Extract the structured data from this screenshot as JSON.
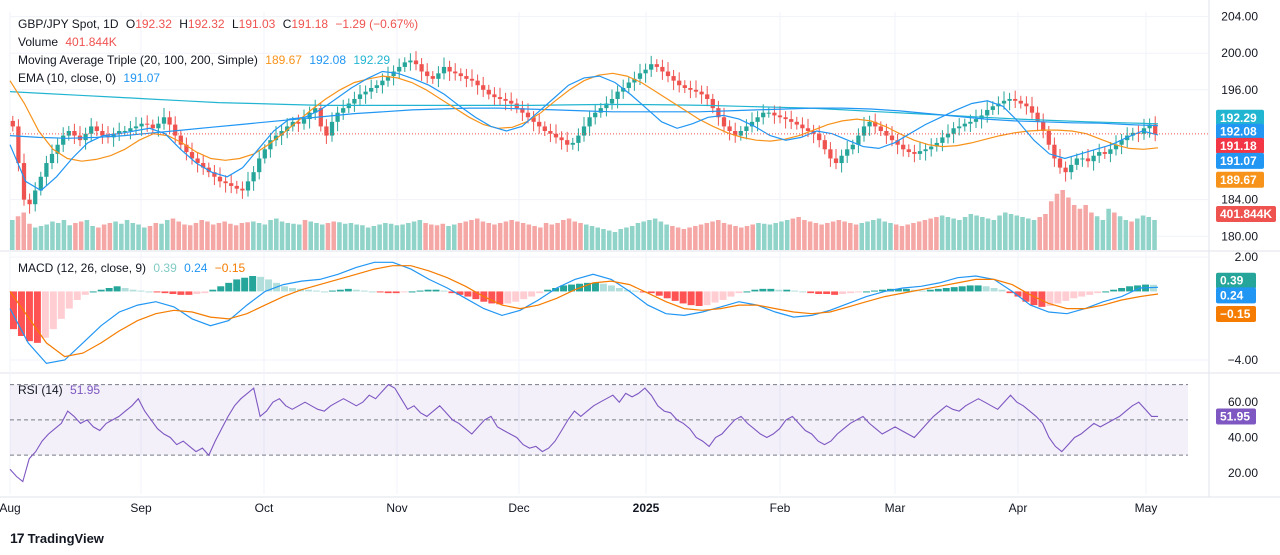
{
  "header": {
    "symbol": "GBP/JPY Spot, 1D",
    "o_label": "O",
    "open": "192.32",
    "h_label": "H",
    "high": "192.32",
    "l_label": "L",
    "low": "191.03",
    "c_label": "C",
    "close": "191.18",
    "change": "−1.29 (−0.67%)",
    "volume_label": "Volume",
    "volume": "401.844K",
    "ma_label": "Moving Average Triple (20, 100, 200, Simple)",
    "ma20": "189.67",
    "ma100": "192.08",
    "ma200": "192.29",
    "ema_label": "EMA (10, close, 0)",
    "ema": "191.07",
    "macd_label": "MACD (12, 26, close, 9)",
    "macd_hist": "0.39",
    "macd_line": "0.24",
    "macd_signal": "−0.15",
    "rsi_label": "RSI (14)",
    "rsi_value": "51.95"
  },
  "colors": {
    "up": "#26a69a",
    "down": "#ef5350",
    "ma20": "#f7931a",
    "ma100": "#2196f3",
    "ma200": "#22b5d1",
    "ema": "#2196f3",
    "macd_line": "#2196f3",
    "macd_signal": "#f57c00",
    "rsi": "#7e57c2",
    "vol_up": "#90d3c9",
    "vol_down": "#f5a7a6",
    "grid": "#f0f3fa",
    "text": "#131722"
  },
  "footer": {
    "brand": "TradingView",
    "logo_glyph": "17"
  },
  "chart_data": [
    {
      "type": "candlestick",
      "title": "GBP/JPY Spot, 1D",
      "x_ticks": [
        "Aug",
        "Sep",
        "Oct",
        "Nov",
        "Dec",
        "2025",
        "Feb",
        "Mar",
        "Apr",
        "May"
      ],
      "y_ticks": [
        204.0,
        200.0,
        196.0,
        184.0,
        180.0
      ],
      "ylim": [
        178.5,
        204.5
      ],
      "close_path": [
        192.0,
        188.0,
        184.0,
        183.5,
        185.0,
        186.5,
        188.0,
        189.0,
        190.0,
        191.0,
        191.5,
        191.0,
        190.5,
        191.2,
        192.0,
        191.5,
        191.0,
        190.8,
        191.2,
        191.5,
        191.5,
        191.8,
        192.0,
        192.3,
        192.2,
        191.8,
        192.3,
        193.0,
        192.2,
        191.0,
        190.0,
        189.2,
        188.5,
        188.0,
        187.5,
        187.0,
        186.5,
        186.0,
        185.8,
        185.5,
        185.2,
        185.0,
        186.0,
        187.0,
        188.5,
        189.5,
        190.5,
        191.0,
        191.5,
        192.0,
        192.5,
        192.3,
        192.8,
        193.5,
        194.0,
        192.0,
        191.0,
        192.5,
        193.5,
        194.0,
        194.5,
        195.0,
        195.5,
        195.8,
        196.2,
        196.5,
        197.0,
        197.5,
        198.0,
        198.5,
        199.0,
        199.2,
        198.8,
        198.0,
        197.5,
        197.2,
        197.8,
        198.5,
        198.0,
        197.8,
        197.5,
        197.2,
        197.0,
        196.5,
        196.0,
        195.5,
        195.2,
        195.0,
        194.8,
        194.5,
        194.0,
        193.5,
        193.0,
        192.5,
        192.0,
        191.5,
        191.2,
        190.8,
        190.5,
        190.0,
        190.2,
        191.0,
        192.0,
        193.0,
        193.5,
        194.0,
        194.5,
        195.0,
        195.8,
        196.2,
        196.8,
        197.2,
        197.8,
        198.2,
        198.8,
        198.5,
        198.0,
        197.5,
        197.0,
        196.5,
        196.2,
        196.0,
        195.8,
        195.5,
        195.0,
        194.0,
        193.0,
        192.0,
        191.5,
        191.0,
        191.5,
        192.0,
        192.5,
        193.0,
        193.5,
        193.5,
        193.2,
        193.0,
        192.8,
        192.5,
        192.2,
        191.8,
        191.5,
        191.2,
        190.5,
        189.5,
        188.5,
        188.0,
        188.8,
        189.5,
        190.0,
        191.0,
        192.0,
        192.5,
        192.0,
        191.5,
        191.0,
        190.5,
        190.0,
        189.5,
        189.2,
        189.0,
        189.3,
        189.5,
        189.8,
        190.2,
        190.8,
        191.2,
        191.8,
        192.0,
        192.3,
        192.5,
        192.8,
        193.2,
        193.8,
        194.2,
        194.5,
        194.8,
        195.0,
        194.8,
        194.5,
        194.2,
        193.5,
        192.5,
        191.5,
        190.0,
        188.5,
        187.5,
        187.0,
        187.8,
        188.5,
        188.5,
        188.2,
        188.8,
        189.2,
        189.0,
        189.5,
        190.0,
        190.5,
        191.0,
        191.3,
        191.2,
        191.8,
        192.2,
        191.18
      ],
      "ma20_path": [
        197.0,
        194.5,
        191.5,
        189.5,
        188.5,
        188.2,
        188.4,
        188.8,
        189.5,
        190.5,
        191.2,
        191.0,
        190.2,
        189.2,
        188.5,
        188.3,
        188.5,
        189.0,
        190.0,
        191.2,
        192.5,
        193.8,
        195.0,
        196.0,
        196.8,
        197.2,
        197.5,
        197.3,
        196.8,
        196.0,
        195.0,
        194.0,
        193.0,
        192.2,
        191.8,
        191.9,
        192.5,
        193.5,
        194.8,
        196.0,
        197.0,
        197.6,
        197.8,
        197.5,
        196.8,
        195.8,
        194.8,
        193.8,
        192.8,
        192.0,
        191.3,
        190.8,
        190.5,
        190.4,
        190.6,
        191.0,
        191.6,
        192.2,
        192.6,
        192.8,
        192.6,
        192.0,
        191.2,
        190.5,
        190.0,
        189.8,
        189.9,
        190.2,
        190.6,
        191.0,
        191.3,
        191.5,
        191.6,
        191.6,
        191.5,
        191.2,
        190.6,
        190.0,
        189.6,
        189.5,
        189.67
      ],
      "ma100_path": [
        191.0,
        190.8,
        190.7,
        190.8,
        191.0,
        191.3,
        191.6,
        191.9,
        192.2,
        192.5,
        192.8,
        193.1,
        193.4,
        193.6,
        193.8,
        193.9,
        194.0,
        194.0,
        193.9,
        193.8,
        193.7,
        193.6,
        193.6,
        193.6,
        193.6,
        193.7,
        193.8,
        193.9,
        194.0,
        194.0,
        193.9,
        193.7,
        193.4,
        193.1,
        192.8,
        192.6,
        192.5,
        192.4,
        192.35,
        192.2,
        192.08
      ],
      "ma200_path": [
        195.8,
        195.6,
        195.4,
        195.2,
        195.0,
        194.8,
        194.6,
        194.5,
        194.4,
        194.3,
        194.3,
        194.3,
        194.3,
        194.3,
        194.3,
        194.3,
        194.35,
        194.4,
        194.4,
        194.35,
        194.3,
        194.2,
        194.1,
        194.0,
        193.8,
        193.6,
        193.4,
        193.2,
        193.0,
        192.8,
        192.65,
        192.5,
        192.4,
        192.29
      ],
      "ema_path": [
        190.0,
        186.0,
        185.0,
        186.5,
        188.5,
        190.2,
        191.0,
        191.2,
        191.5,
        191.8,
        191.2,
        189.5,
        188.0,
        187.0,
        186.5,
        187.5,
        189.5,
        191.5,
        192.8,
        193.0,
        193.8,
        195.0,
        196.2,
        197.2,
        198.0,
        197.8,
        197.2,
        196.5,
        195.5,
        194.2,
        193.0,
        192.0,
        191.5,
        192.0,
        193.5,
        195.0,
        196.5,
        197.3,
        197.5,
        196.8,
        195.5,
        194.0,
        192.5,
        191.8,
        192.3,
        193.0,
        193.2,
        192.8,
        192.0,
        191.0,
        190.5,
        190.8,
        191.5,
        191.2,
        190.5,
        189.8,
        189.6,
        190.2,
        191.2,
        192.2,
        193.0,
        193.8,
        194.5,
        194.8,
        194.2,
        192.5,
        190.5,
        189.0,
        188.5,
        189.0,
        189.5,
        190.0,
        190.8,
        191.5,
        191.07
      ]
    },
    {
      "type": "bar",
      "title": "Volume",
      "values": [
        40,
        45,
        50,
        35,
        30,
        32,
        34,
        38,
        36,
        40,
        33,
        36,
        38,
        40,
        32,
        30,
        34,
        36,
        38,
        35,
        40,
        36,
        34,
        30,
        32,
        36,
        35,
        40,
        42,
        38,
        34,
        33,
        36,
        40,
        38,
        34,
        36,
        38,
        35,
        33,
        36,
        37,
        38,
        36,
        34,
        40,
        42,
        38,
        36,
        35,
        34,
        40,
        38,
        36,
        34,
        36,
        38,
        37,
        35,
        36,
        34,
        33,
        30,
        32,
        34,
        36,
        35,
        33,
        34,
        36,
        38,
        40,
        36,
        34,
        33,
        35,
        32,
        34,
        36,
        38,
        40,
        42,
        38,
        36,
        34,
        36,
        38,
        40,
        38,
        36,
        34,
        32,
        30,
        36,
        34,
        36,
        40,
        42,
        38,
        36,
        34,
        32,
        30,
        28,
        26,
        24,
        28,
        30,
        32,
        36,
        38,
        40,
        42,
        38,
        34,
        32,
        30,
        28,
        30,
        32,
        34,
        36,
        38,
        40,
        36,
        34,
        32,
        30,
        32,
        34,
        36,
        35,
        34,
        36,
        38,
        40,
        42,
        44,
        40,
        38,
        36,
        34,
        36,
        38,
        40,
        38,
        36,
        34,
        36,
        38,
        40,
        42,
        38,
        36,
        34,
        32,
        34,
        36,
        38,
        40,
        42,
        44,
        46,
        44,
        42,
        40,
        44,
        48,
        46,
        44,
        42,
        40,
        46,
        50,
        48,
        46,
        44,
        42,
        40,
        44,
        48,
        65,
        75,
        80,
        70,
        60,
        55,
        60,
        50,
        45,
        40,
        55,
        50,
        45,
        40,
        38,
        42,
        46,
        44,
        40
      ],
      "last": "401.844K"
    },
    {
      "type": "line",
      "title": "MACD (12, 26, close, 9)",
      "y_ticks": [
        2.0,
        -4.0
      ],
      "ylim": [
        -4.7,
        2.3
      ],
      "hist": [
        -2.2,
        -2.6,
        -2.9,
        -3.0,
        -2.7,
        -2.2,
        -1.6,
        -1.0,
        -0.5,
        -0.2,
        0.0,
        0.1,
        0.2,
        0.3,
        0.2,
        0.1,
        0.05,
        0.0,
        -0.05,
        -0.1,
        -0.15,
        -0.2,
        -0.2,
        -0.15,
        -0.1,
        0.1,
        0.3,
        0.5,
        0.7,
        0.8,
        0.9,
        0.85,
        0.7,
        0.5,
        0.3,
        0.2,
        0.15,
        0.1,
        0.05,
        0.0,
        0.05,
        0.1,
        0.15,
        0.1,
        0.05,
        0.0,
        -0.05,
        -0.1,
        -0.1,
        -0.05,
        0.0,
        0.05,
        0.1,
        0.1,
        0.05,
        -0.1,
        -0.2,
        -0.3,
        -0.45,
        -0.6,
        -0.7,
        -0.75,
        -0.7,
        -0.6,
        -0.45,
        -0.3,
        -0.1,
        0.1,
        0.2,
        0.35,
        0.4,
        0.45,
        0.5,
        0.5,
        0.45,
        0.35,
        0.2,
        0.1,
        0.05,
        -0.05,
        -0.1,
        -0.25,
        -0.4,
        -0.55,
        -0.7,
        -0.8,
        -0.85,
        -0.8,
        -0.65,
        -0.5,
        -0.3,
        -0.1,
        0.0,
        0.1,
        0.15,
        0.15,
        0.1,
        0.1,
        0.05,
        0.0,
        -0.1,
        -0.15,
        -0.15,
        -0.2,
        -0.15,
        -0.1,
        -0.05,
        0.0,
        0.05,
        0.1,
        0.15,
        0.15,
        0.15,
        0.1,
        0.05,
        0.1,
        0.15,
        0.2,
        0.25,
        0.3,
        0.35,
        0.35,
        0.3,
        0.2,
        0.1,
        -0.1,
        -0.3,
        -0.6,
        -0.8,
        -0.9,
        -0.85,
        -0.7,
        -0.55,
        -0.4,
        -0.3,
        -0.2,
        -0.1,
        0.0,
        0.1,
        0.2,
        0.3,
        0.35,
        0.4,
        0.39
      ],
      "macd_line_path": [
        -1.0,
        -3.0,
        -4.2,
        -4.0,
        -3.0,
        -2.0,
        -1.2,
        -0.8,
        -0.6,
        -0.9,
        -1.6,
        -2.0,
        -1.7,
        -0.8,
        0.0,
        0.4,
        0.6,
        0.7,
        1.0,
        1.4,
        1.7,
        1.7,
        1.3,
        0.7,
        0.2,
        -0.4,
        -1.0,
        -1.4,
        -1.1,
        -0.5,
        0.2,
        0.7,
        1.0,
        0.7,
        0.0,
        -0.8,
        -1.3,
        -1.4,
        -1.2,
        -0.9,
        -0.6,
        -0.8,
        -1.2,
        -1.5,
        -1.4,
        -1.1,
        -0.7,
        -0.3,
        0.0,
        0.2,
        0.3,
        0.5,
        0.8,
        0.9,
        0.7,
        0.0,
        -0.8,
        -1.2,
        -1.3,
        -1.0,
        -0.6,
        -0.3,
        0.2,
        0.24
      ],
      "signal_path": [
        0.0,
        -1.5,
        -3.0,
        -3.8,
        -3.6,
        -3.0,
        -2.3,
        -1.7,
        -1.3,
        -1.1,
        -1.2,
        -1.5,
        -1.6,
        -1.3,
        -0.8,
        -0.3,
        0.1,
        0.4,
        0.7,
        1.0,
        1.3,
        1.5,
        1.5,
        1.2,
        0.8,
        0.3,
        -0.3,
        -0.8,
        -1.0,
        -0.8,
        -0.4,
        0.1,
        0.5,
        0.6,
        0.4,
        -0.1,
        -0.6,
        -1.0,
        -1.1,
        -1.0,
        -0.8,
        -0.8,
        -1.0,
        -1.2,
        -1.3,
        -1.2,
        -0.9,
        -0.6,
        -0.3,
        -0.1,
        0.1,
        0.3,
        0.5,
        0.7,
        0.7,
        0.4,
        -0.2,
        -0.7,
        -1.0,
        -1.0,
        -0.8,
        -0.5,
        -0.3,
        -0.15
      ]
    },
    {
      "type": "line",
      "title": "RSI (14)",
      "y_ticks": [
        60.0,
        40.0,
        20.0
      ],
      "ylim": [
        8,
        76
      ],
      "band": [
        30,
        70
      ],
      "mid": 50,
      "values": [
        22,
        18,
        15,
        28,
        32,
        38,
        42,
        45,
        48,
        55,
        52,
        48,
        50,
        46,
        44,
        48,
        50,
        52,
        55,
        58,
        62,
        55,
        50,
        45,
        42,
        40,
        36,
        38,
        35,
        32,
        34,
        30,
        38,
        45,
        52,
        58,
        62,
        65,
        68,
        52,
        55,
        60,
        62,
        58,
        56,
        58,
        60,
        58,
        56,
        55,
        58,
        60,
        62,
        60,
        58,
        60,
        64,
        62,
        66,
        70,
        68,
        62,
        56,
        58,
        54,
        52,
        55,
        58,
        54,
        50,
        48,
        45,
        42,
        46,
        50,
        52,
        46,
        44,
        42,
        40,
        36,
        34,
        35,
        32,
        34,
        38,
        44,
        50,
        55,
        52,
        55,
        58,
        60,
        62,
        64,
        60,
        65,
        63,
        65,
        68,
        64,
        58,
        55,
        54,
        50,
        48,
        45,
        40,
        38,
        35,
        40,
        42,
        46,
        50,
        52,
        48,
        45,
        42,
        40,
        42,
        45,
        50,
        52,
        48,
        44,
        42,
        38,
        36,
        38,
        42,
        45,
        48,
        50,
        52,
        48,
        45,
        42,
        44,
        46,
        44,
        42,
        40,
        44,
        48,
        52,
        55,
        58,
        56,
        55,
        58,
        60,
        62,
        60,
        58,
        56,
        60,
        64,
        60,
        58,
        55,
        52,
        48,
        40,
        35,
        32,
        36,
        40,
        42,
        45,
        48,
        46,
        48,
        50,
        52,
        55,
        58,
        60,
        56,
        52,
        51.95
      ]
    }
  ],
  "axis": {
    "price_labels": [
      "204.00",
      "200.00",
      "196.00",
      "184.00",
      "180.00"
    ],
    "macd_labels": [
      "2.00",
      "−4.00"
    ],
    "rsi_labels": [
      "60.00",
      "40.00",
      "20.00"
    ],
    "time_labels": [
      "Aug",
      "Sep",
      "Oct",
      "Nov",
      "Dec",
      "2025",
      "Feb",
      "Mar",
      "Apr",
      "May"
    ]
  },
  "badges": {
    "ma200": "192.29",
    "ma100": "192.08",
    "close": "191.18",
    "ema": "191.07",
    "ma20": "189.67",
    "volume": "401.844K",
    "macd_hist": "0.39",
    "macd_line": "0.24",
    "macd_signal": "−0.15",
    "rsi": "51.95"
  }
}
